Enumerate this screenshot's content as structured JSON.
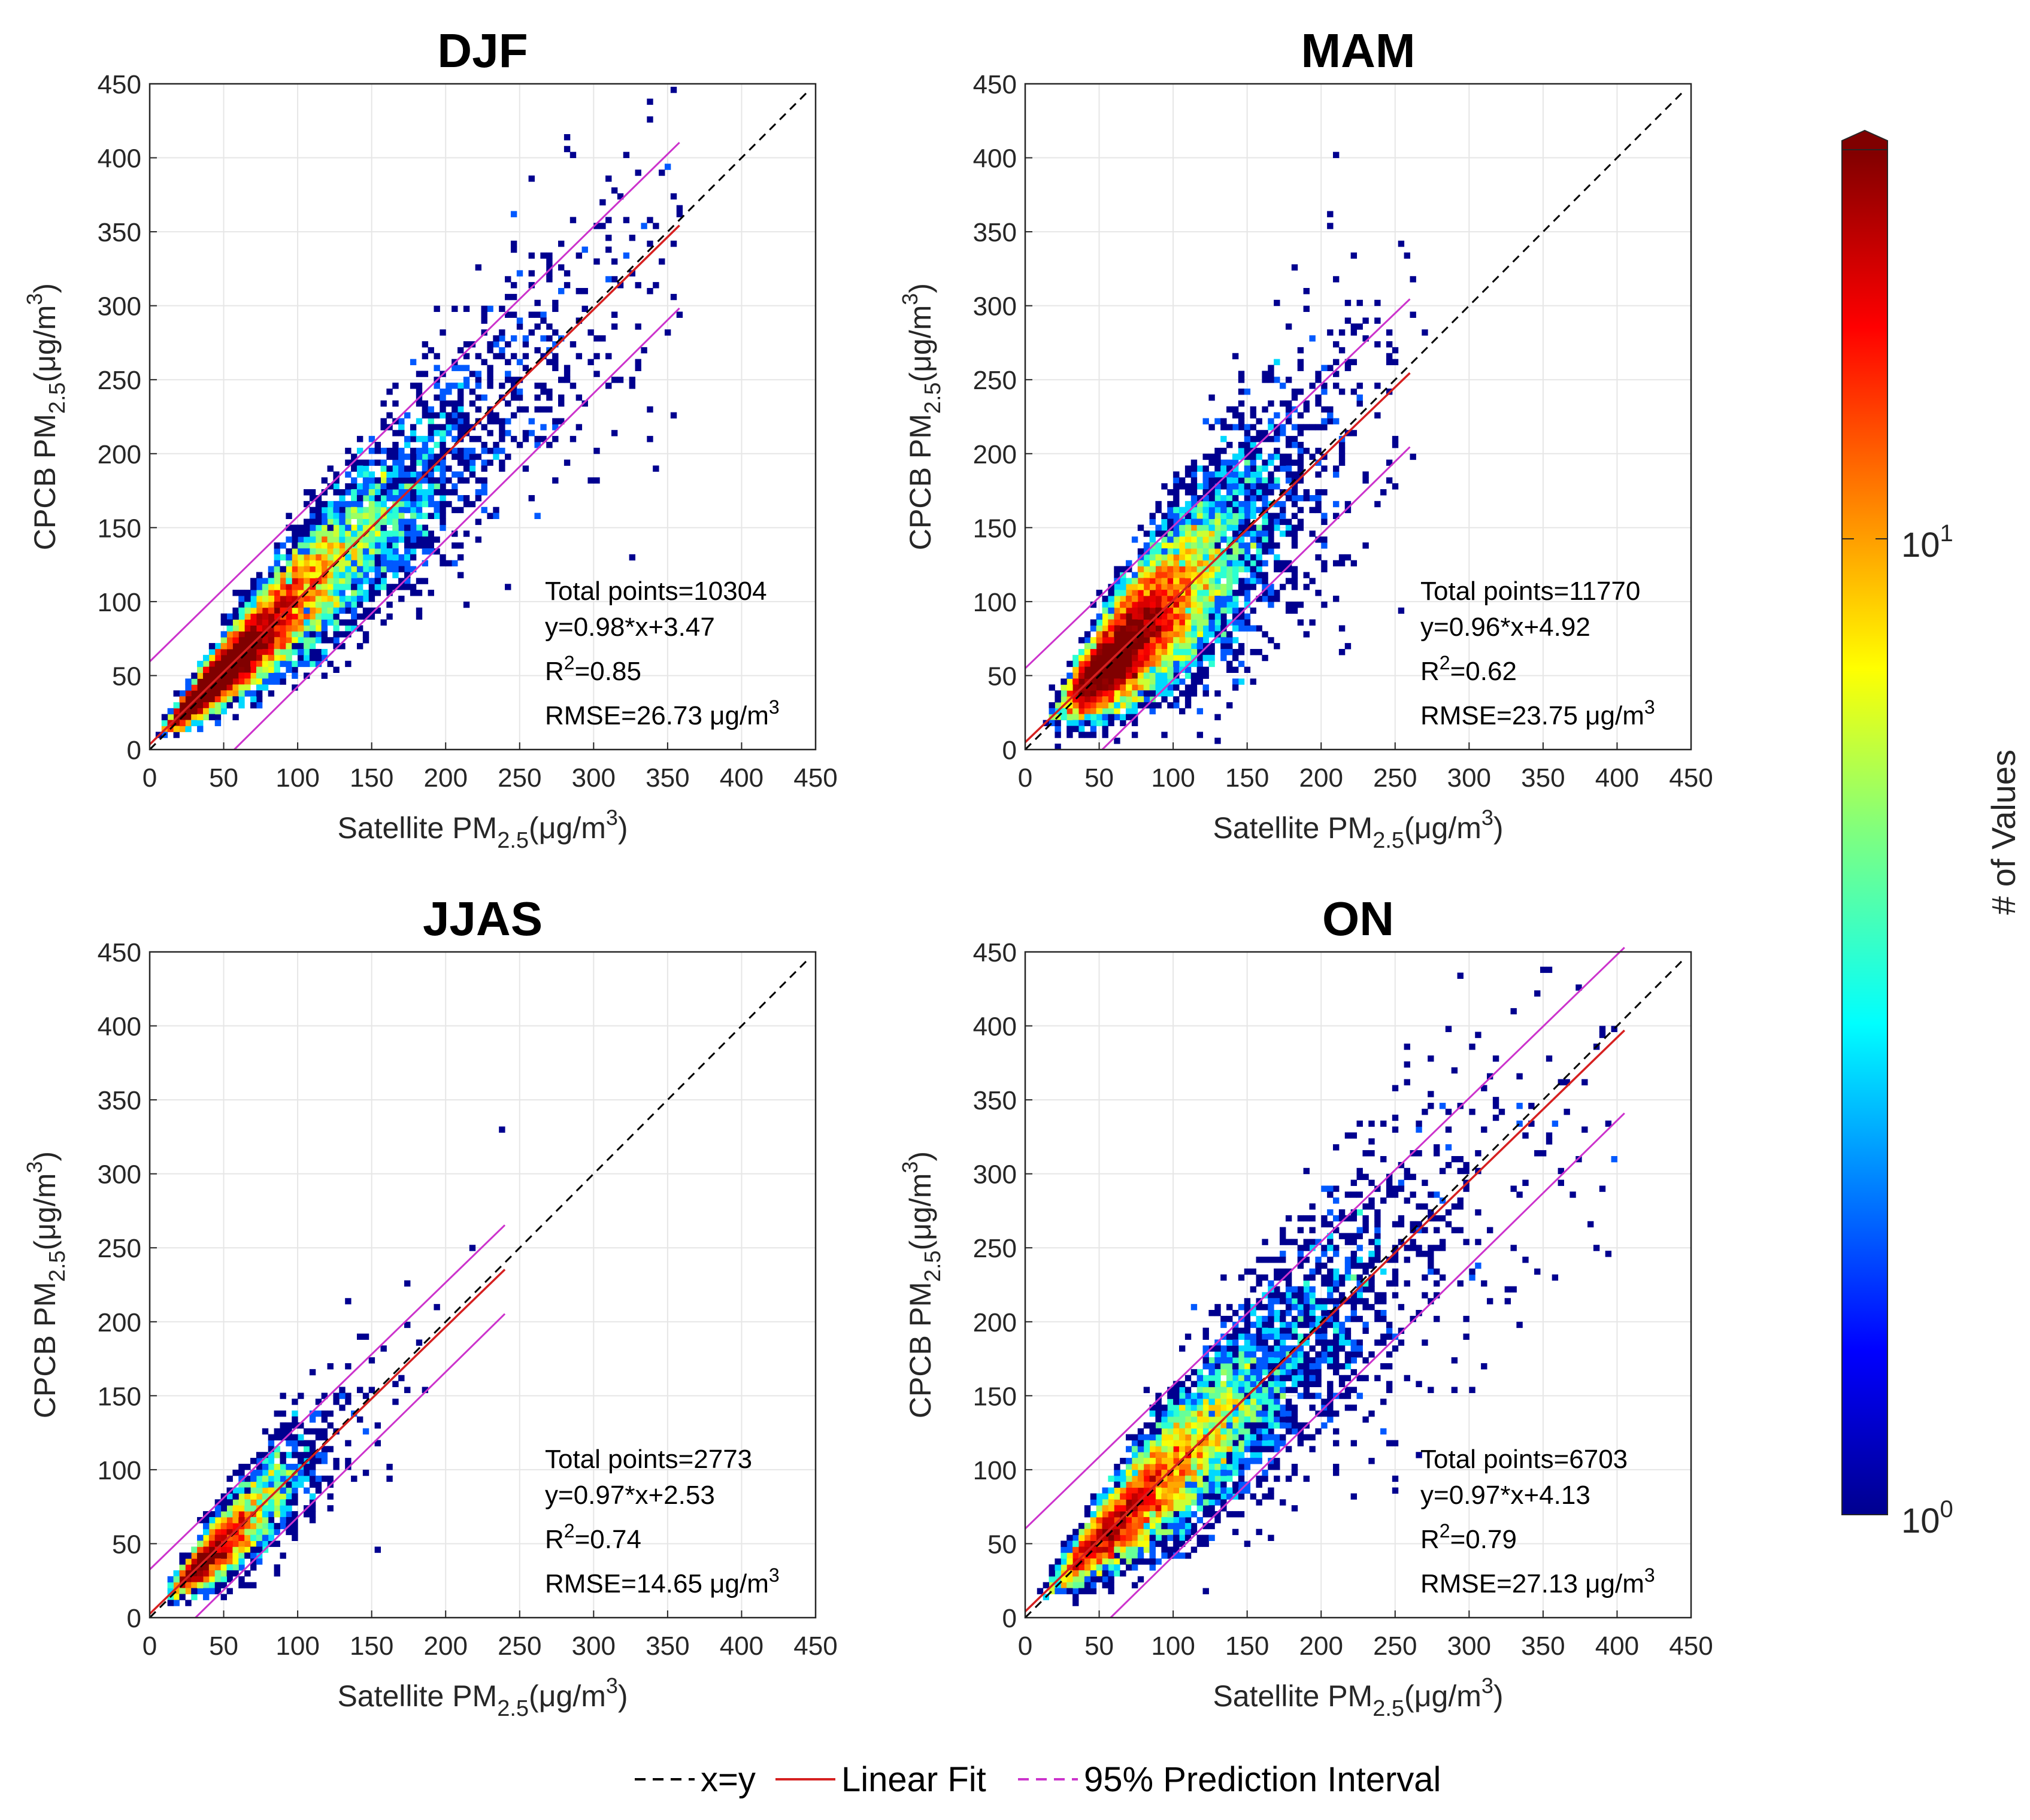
{
  "chart_data": [
    {
      "type": "heatmap",
      "title": "DJF",
      "xlabel": "Satellite PM",
      "xlabel_sub": "2.5",
      "xlabel_unit": "(μg/m",
      "ylabel": "CPCB PM",
      "ylabel_sub": "2.5",
      "ylabel_unit": "(μg/m",
      "unit_sup": "3",
      "unit_close": ")",
      "xlim": [
        0,
        450
      ],
      "ylim": [
        0,
        450
      ],
      "xticks": [
        "0",
        "50",
        "100",
        "150",
        "200",
        "250",
        "300",
        "350",
        "400",
        "450"
      ],
      "yticks": [
        "0",
        "50",
        "100",
        "150",
        "200",
        "250",
        "300",
        "350",
        "400",
        "450"
      ],
      "grid": true,
      "fit": {
        "slope": 0.98,
        "intercept": 3.47,
        "xmax": 358
      },
      "prediction_band": 56,
      "stats": {
        "total": "Total points=10304",
        "equation": "y=0.98*x+3.47",
        "r2_prefix": "R",
        "r2_sup": "2",
        "r2_value": "=0.85",
        "rmse": "RMSE=26.73 μg/m",
        "rmse_sup": "3"
      }
    },
    {
      "type": "heatmap",
      "title": "MAM",
      "xlabel": "Satellite PM",
      "xlabel_sub": "2.5",
      "xlabel_unit": "(μg/m",
      "ylabel": "CPCB PM",
      "ylabel_sub": "2.5",
      "ylabel_unit": "(μg/m",
      "unit_sup": "3",
      "unit_close": ")",
      "xlim": [
        0,
        450
      ],
      "ylim": [
        0,
        450
      ],
      "xticks": [
        "0",
        "50",
        "100",
        "150",
        "200",
        "250",
        "300",
        "350",
        "400",
        "450"
      ],
      "yticks": [
        "0",
        "50",
        "100",
        "150",
        "200",
        "250",
        "300",
        "350",
        "400",
        "450"
      ],
      "grid": true,
      "fit": {
        "slope": 0.96,
        "intercept": 4.92,
        "xmax": 260
      },
      "prediction_band": 50,
      "stats": {
        "total": "Total points=11770",
        "equation": "y=0.96*x+4.92",
        "r2_prefix": "R",
        "r2_sup": "2",
        "r2_value": "=0.62",
        "rmse": "RMSE=23.75 μg/m",
        "rmse_sup": "3"
      }
    },
    {
      "type": "heatmap",
      "title": "JJAS",
      "xlabel": "Satellite PM",
      "xlabel_sub": "2.5",
      "xlabel_unit": "(μg/m",
      "ylabel": "CPCB PM",
      "ylabel_sub": "2.5",
      "ylabel_unit": "(μg/m",
      "unit_sup": "3",
      "unit_close": ")",
      "xlim": [
        0,
        450
      ],
      "ylim": [
        0,
        450
      ],
      "xticks": [
        "0",
        "50",
        "100",
        "150",
        "200",
        "250",
        "300",
        "350",
        "400",
        "450"
      ],
      "yticks": [
        "0",
        "50",
        "100",
        "150",
        "200",
        "250",
        "300",
        "350",
        "400",
        "450"
      ],
      "grid": true,
      "fit": {
        "slope": 0.97,
        "intercept": 2.53,
        "xmax": 240
      },
      "prediction_band": 30,
      "stats": {
        "total": "Total points=2773",
        "equation": "y=0.97*x+2.53",
        "r2_prefix": "R",
        "r2_sup": "2",
        "r2_value": "=0.74",
        "rmse": "RMSE=14.65 μg/m",
        "rmse_sup": "3"
      }
    },
    {
      "type": "heatmap",
      "title": "ON",
      "xlabel": "Satellite PM",
      "xlabel_sub": "2.5",
      "xlabel_unit": "(μg/m",
      "ylabel": "CPCB PM",
      "ylabel_sub": "2.5",
      "ylabel_unit": "(μg/m",
      "unit_sup": "3",
      "unit_close": ")",
      "xlim": [
        0,
        450
      ],
      "ylim": [
        0,
        450
      ],
      "xticks": [
        "0",
        "50",
        "100",
        "150",
        "200",
        "250",
        "300",
        "350",
        "400",
        "450"
      ],
      "yticks": [
        "0",
        "50",
        "100",
        "150",
        "200",
        "250",
        "300",
        "350",
        "400",
        "450"
      ],
      "grid": true,
      "fit": {
        "slope": 0.97,
        "intercept": 4.13,
        "xmax": 405
      },
      "prediction_band": 56,
      "stats": {
        "total": "Total points=6703",
        "equation": "y=0.97*x+4.13",
        "r2_prefix": "R",
        "r2_sup": "2",
        "r2_value": "=0.79",
        "rmse": "RMSE=27.13 μg/m",
        "rmse_sup": "3"
      }
    }
  ],
  "legend": {
    "entries": [
      {
        "label": "x=y",
        "color": "#000000",
        "style": "dashed"
      },
      {
        "label": "Linear Fit",
        "color": "#d62020",
        "style": "solid"
      },
      {
        "label": "95% Prediction Interval",
        "color": "#cc33cc",
        "style": "dashed"
      }
    ]
  },
  "colorbar": {
    "label": "# of Values",
    "scale": "log",
    "ticks": [
      {
        "base": "10",
        "exp": "0",
        "value": 1
      },
      {
        "base": "10",
        "exp": "1",
        "value": 10
      }
    ],
    "colormap": "jet"
  }
}
